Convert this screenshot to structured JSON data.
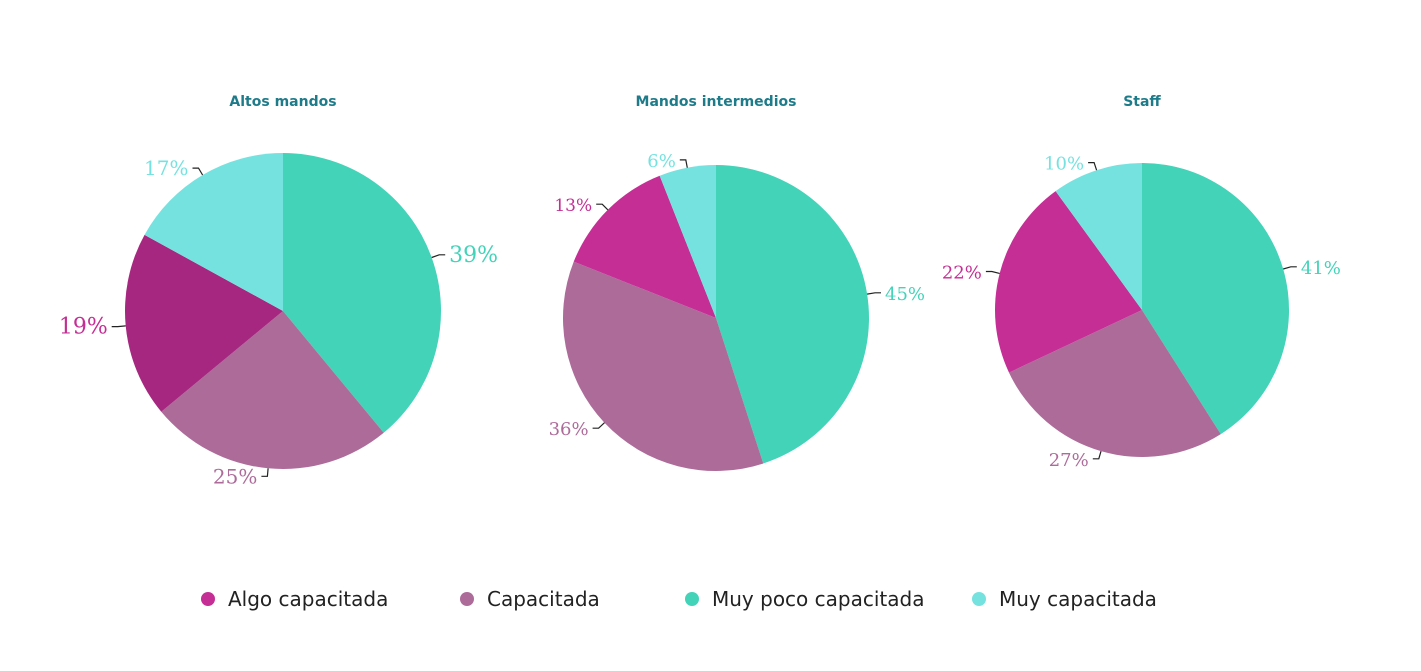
{
  "colors": {
    "title": "#1e7b8a",
    "leader": "#222222"
  },
  "legend": [
    {
      "label": "Algo capacitada",
      "color": "#c42e95"
    },
    {
      "label": "Capacitada",
      "color": "#ad6b9a"
    },
    {
      "label": "Muy poco capacitada",
      "color": "#42d3b9"
    },
    {
      "label": "Muy capacitada",
      "color": "#75e2e0"
    }
  ],
  "chart_data": [
    {
      "type": "pie",
      "title": "Altos mandos",
      "slices": [
        {
          "category": "Muy poco capacitada",
          "value": 39,
          "label": "39%",
          "color": "#42d3b9",
          "label_color": "#42d3b9"
        },
        {
          "category": "Capacitada",
          "value": 25,
          "label": "25%",
          "color": "#ad6b9a",
          "label_color": "#ad6b9a"
        },
        {
          "category": "Algo capacitada",
          "value": 19,
          "label": "19%",
          "color": "#a6277f",
          "label_color": "#c42e95"
        },
        {
          "category": "Muy capacitada",
          "value": 17,
          "label": "17%",
          "color": "#75e2e0",
          "label_color": "#75e2e0"
        }
      ]
    },
    {
      "type": "pie",
      "title": "Mandos intermedios",
      "slices": [
        {
          "category": "Muy poco capacitada",
          "value": 45,
          "label": "45%",
          "color": "#42d3b9",
          "label_color": "#42d3b9"
        },
        {
          "category": "Capacitada",
          "value": 36,
          "label": "36%",
          "color": "#ad6b9a",
          "label_color": "#ad6b9a"
        },
        {
          "category": "Algo capacitada",
          "value": 13,
          "label": "13%",
          "color": "#c42e95",
          "label_color": "#c42e95"
        },
        {
          "category": "Muy capacitada",
          "value": 6,
          "label": "6%",
          "color": "#75e2e0",
          "label_color": "#75e2e0"
        }
      ]
    },
    {
      "type": "pie",
      "title": "Staff",
      "slices": [
        {
          "category": "Muy poco capacitada",
          "value": 41,
          "label": "41%",
          "color": "#42d3b9",
          "label_color": "#42d3b9"
        },
        {
          "category": "Capacitada",
          "value": 27,
          "label": "27%",
          "color": "#ad6b9a",
          "label_color": "#ad6b9a"
        },
        {
          "category": "Algo capacitada",
          "value": 22,
          "label": "22%",
          "color": "#c42e95",
          "label_color": "#c42e95"
        },
        {
          "category": "Muy capacitada",
          "value": 10,
          "label": "10%",
          "color": "#75e2e0",
          "label_color": "#75e2e0"
        }
      ]
    }
  ]
}
